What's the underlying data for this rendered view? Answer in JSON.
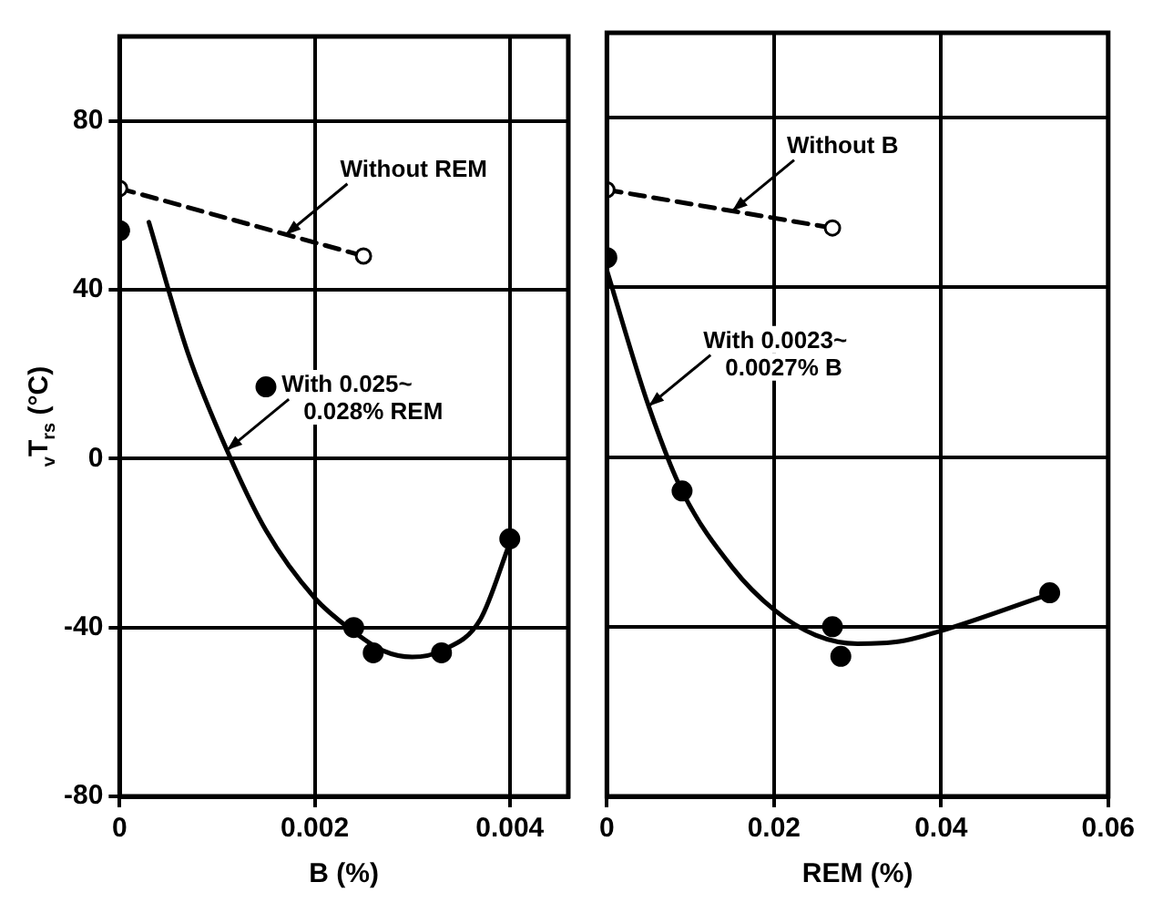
{
  "chart_data": [
    {
      "type": "line",
      "xlabel": "B (%)",
      "ylabel": "$_{v}$T$_{rs}$ (°C)",
      "xlim": [
        0,
        0.0046
      ],
      "xticks": [
        0,
        0.002,
        0.004
      ],
      "ylim": [
        -80,
        100
      ],
      "yticks": [
        -80,
        -40,
        0,
        40,
        80
      ],
      "grid": true,
      "legend": false,
      "series": [
        {
          "type": "line",
          "color": "#000000",
          "line_style": "dashed",
          "marker": "circle",
          "x": [
            0,
            0.0025
          ],
          "values": [
            64,
            48
          ]
        },
        {
          "type": "scatter",
          "color": "#000000",
          "marker": "circle",
          "x": [
            0,
            0.0015,
            0.0024,
            0.0026,
            0.0033,
            0.004
          ],
          "values": [
            54,
            17,
            -40,
            -46,
            -46,
            -19
          ]
        },
        {
          "type": "line",
          "color": "#000000",
          "line_style": "solid",
          "marker": "none",
          "x": [
            0.0003,
            0.0007,
            0.0011,
            0.0015,
            0.002,
            0.0024,
            0.0027,
            0.003,
            0.0033,
            0.0037,
            0.004
          ],
          "values": [
            56,
            25,
            2,
            -17,
            -33,
            -41,
            -45.5,
            -47,
            -45.5,
            -38,
            -20
          ]
        }
      ],
      "annotations": [
        {
          "text": "Without REM",
          "x": 0.0017,
          "y": 53
        },
        {
          "text": "With 0.025~ 0.028% REM",
          "x": 0.0011,
          "y": 2
        }
      ]
    },
    {
      "type": "line",
      "xlabel": "REM (%)",
      "xlim": [
        0,
        0.06
      ],
      "xticks": [
        0,
        0.02,
        0.04,
        0.06
      ],
      "ylim": [
        -80,
        100
      ],
      "yticks": [
        -80,
        -40,
        0,
        40,
        80
      ],
      "tick_labels": "x",
      "grid": true,
      "legend": false,
      "series": [
        {
          "type": "line",
          "color": "#000000",
          "line_style": "dashed",
          "marker": "circle",
          "x": [
            0,
            0.027
          ],
          "values": [
            63,
            54
          ]
        },
        {
          "type": "scatter",
          "color": "#000000",
          "marker": "circle",
          "x": [
            0,
            0.009,
            0.027,
            0.028,
            0.053
          ],
          "values": [
            47,
            -8,
            -40,
            -47,
            -32
          ]
        },
        {
          "type": "line",
          "color": "#000000",
          "line_style": "solid",
          "marker": "none",
          "x": [
            0,
            0.005,
            0.009,
            0.015,
            0.02,
            0.025,
            0.03,
            0.035,
            0.04,
            0.052
          ],
          "values": [
            44,
            12,
            -8,
            -26,
            -36,
            -42,
            -44,
            -43.5,
            -41,
            -33
          ]
        }
      ],
      "annotations": [
        {
          "text": "Without B",
          "x": 0.015,
          "y": 58
        },
        {
          "text": "With 0.0023~ 0.0027% B",
          "x": 0.005,
          "y": 12
        }
      ]
    }
  ]
}
